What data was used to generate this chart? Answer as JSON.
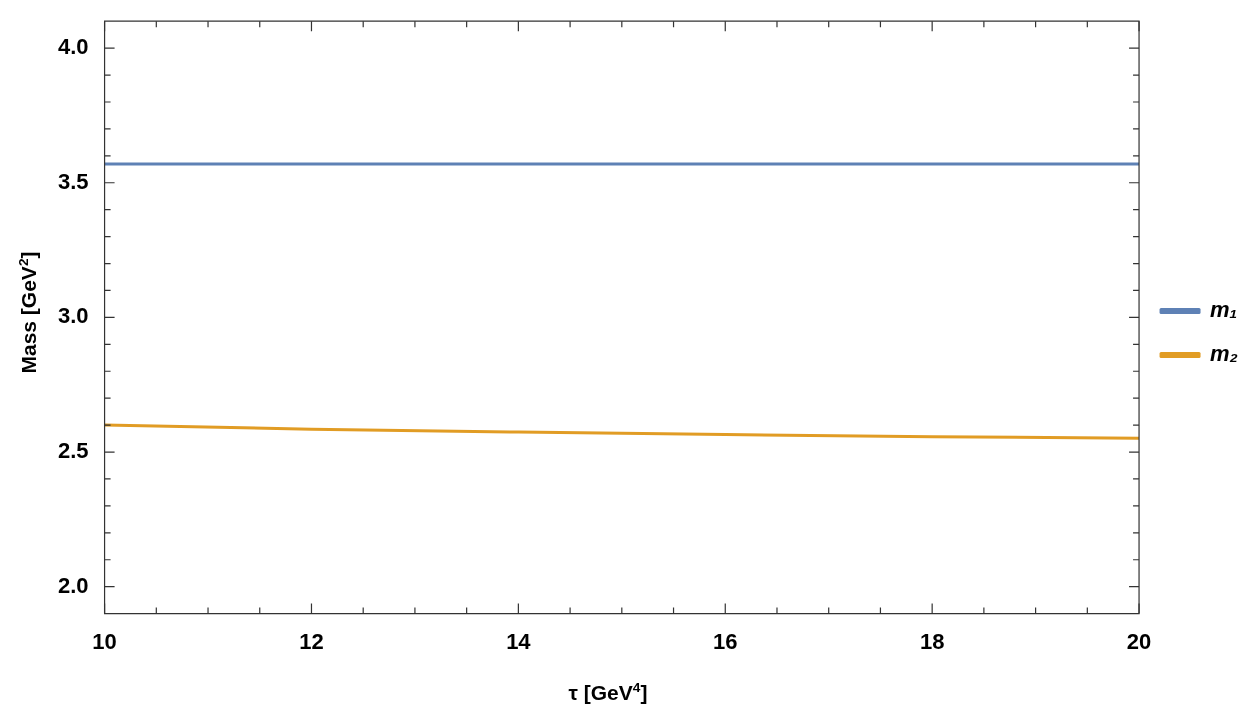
{
  "chart_data": {
    "type": "line",
    "xlabel": "τ [GeV$^{4}$]",
    "ylabel": "Mass [GeV$^{2}$]",
    "xlim": [
      10,
      20
    ],
    "xticks": [
      10,
      {
        "value": 10.5,
        "label": null
      },
      {
        "value": 11,
        "label": null
      },
      {
        "value": 11.5,
        "label": null
      },
      12,
      {
        "value": 12.5,
        "label": null
      },
      {
        "value": 13,
        "label": null
      },
      {
        "value": 13.5,
        "label": null
      },
      14,
      {
        "value": 14.5,
        "label": null
      },
      {
        "value": 15,
        "label": null
      },
      {
        "value": 15.5,
        "label": null
      },
      16,
      {
        "value": 16.5,
        "label": null
      },
      {
        "value": 17,
        "label": null
      },
      {
        "value": 17.5,
        "label": null
      },
      18,
      {
        "value": 18.5,
        "label": null
      },
      {
        "value": 19,
        "label": null
      },
      {
        "value": 19.5,
        "label": null
      },
      20
    ],
    "ylim": [
      1.9,
      4.1
    ],
    "yticks": [
      {
        "value": 2,
        "label": "2.0"
      },
      {
        "value": 2.1,
        "label": null
      },
      {
        "value": 2.2,
        "label": null
      },
      {
        "value": 2.3,
        "label": null
      },
      {
        "value": 2.4,
        "label": null
      },
      {
        "value": 2.5,
        "label": "2.5"
      },
      {
        "value": 2.6,
        "label": null
      },
      {
        "value": 2.7,
        "label": null
      },
      {
        "value": 2.8,
        "label": null
      },
      {
        "value": 2.9,
        "label": null
      },
      {
        "value": 3,
        "label": "3.0"
      },
      {
        "value": 3.1,
        "label": null
      },
      {
        "value": 3.2,
        "label": null
      },
      {
        "value": 3.3,
        "label": null
      },
      {
        "value": 3.4,
        "label": null
      },
      {
        "value": 3.5,
        "label": "3.5"
      },
      {
        "value": 3.6,
        "label": null
      },
      {
        "value": 3.7,
        "label": null
      },
      {
        "value": 3.8,
        "label": null
      },
      {
        "value": 3.9,
        "label": null
      },
      {
        "value": 4,
        "label": "4.0"
      }
    ],
    "x": [
      10,
      12,
      14,
      16,
      18,
      20
    ],
    "series": [
      {
        "name": "m₁",
        "color": "#5e81b5",
        "values": [
          3.57,
          3.57,
          3.57,
          3.57,
          3.57,
          3.57
        ]
      },
      {
        "name": "m₂",
        "color": "#e19c24",
        "values": [
          2.6,
          2.585,
          2.574,
          2.565,
          2.557,
          2.551
        ]
      }
    ],
    "legend": "right",
    "grid": false,
    "marker": "none",
    "line_style": "solid"
  }
}
